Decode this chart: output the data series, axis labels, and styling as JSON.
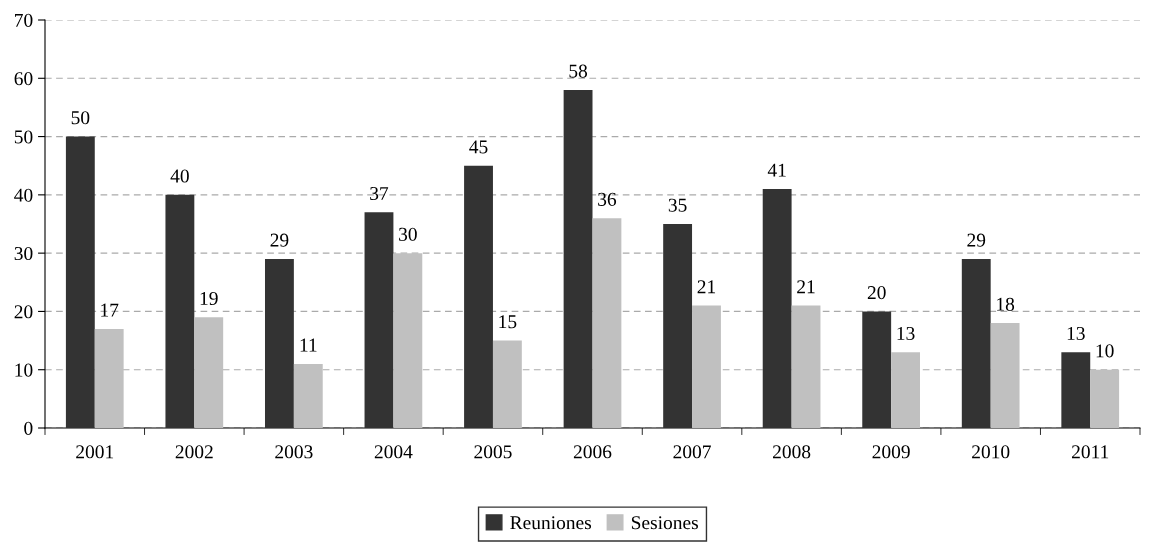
{
  "chart_data": {
    "type": "bar",
    "categories": [
      "2001",
      "2002",
      "2003",
      "2004",
      "2005",
      "2006",
      "2007",
      "2008",
      "2009",
      "2010",
      "2011"
    ],
    "series": [
      {
        "name": "Reuniones",
        "color": "#333333",
        "values": [
          50,
          40,
          29,
          37,
          45,
          58,
          35,
          41,
          20,
          29,
          13
        ]
      },
      {
        "name": "Sesiones",
        "color": "#c0c0c0",
        "values": [
          17,
          19,
          11,
          30,
          15,
          36,
          21,
          21,
          13,
          18,
          10
        ]
      }
    ],
    "ylim": [
      0,
      70
    ],
    "yticks": [
      0,
      10,
      20,
      30,
      40,
      50,
      60,
      70
    ],
    "grid": "y",
    "legend": "bottom",
    "data_labels": true
  }
}
